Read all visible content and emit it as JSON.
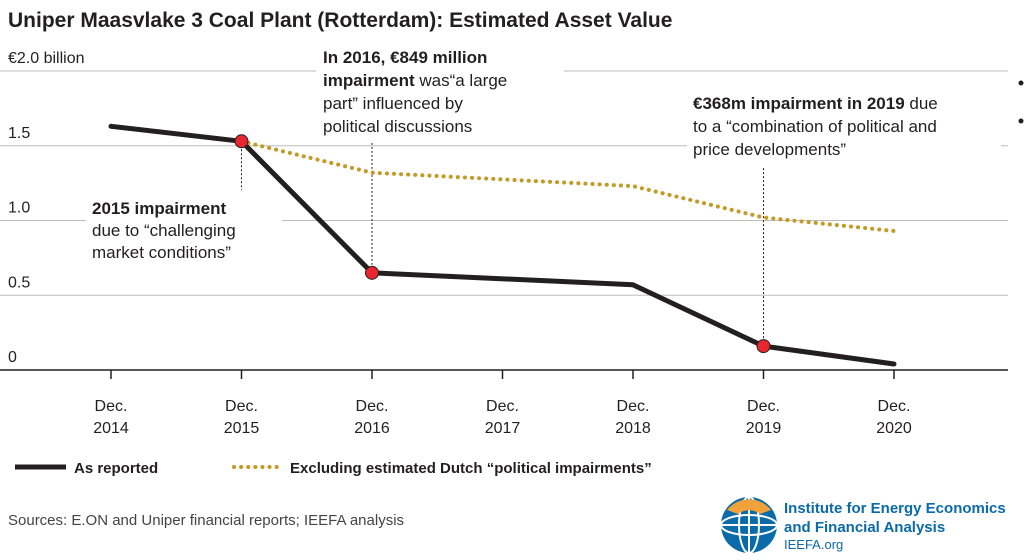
{
  "colors": {
    "reported": "#231f20",
    "excluding": "#c49a27",
    "marker": "#e8262f",
    "grid": "#bdbdbd",
    "logo_blue": "#0b6aa8",
    "logo_orange": "#f0a23b"
  },
  "chart_data": {
    "type": "line",
    "title": "Uniper Maasvlake 3 Coal Plant (Rotterdam):  Estimated Asset Value",
    "categories": [
      "Dec.|2014",
      "Dec.|2015",
      "Dec.|2016",
      "Dec.|2017",
      "Dec.|2018",
      "Dec.|2019",
      "Dec.|2020"
    ],
    "yticks": [
      "0",
      "0.5",
      "1.0",
      "1.5",
      "€2.0 billion"
    ],
    "ylim": [
      0,
      2.0
    ],
    "grid": true,
    "legend_position": "bottom",
    "series": [
      {
        "name": "As reported",
        "style": "solid",
        "points": [
          [
            0,
            1.63
          ],
          [
            1,
            1.53
          ],
          [
            2,
            0.65
          ],
          [
            4,
            0.57
          ],
          [
            5,
            0.16
          ],
          [
            6,
            0.04
          ]
        ]
      },
      {
        "name": "Excluding estimated Dutch “political impairments”",
        "style": "dotted",
        "points": [
          [
            1,
            1.53
          ],
          [
            2,
            1.32
          ],
          [
            4,
            1.23
          ],
          [
            5,
            1.02
          ],
          [
            6,
            0.93
          ]
        ]
      }
    ],
    "markers": [
      [
        1,
        1.53
      ],
      [
        2,
        0.65
      ],
      [
        5,
        0.16
      ]
    ],
    "annotations": [
      {
        "lines": [
          [
            [
              "2015 impairment",
              true
            ]
          ],
          [
            [
              "due to “challenging",
              false
            ]
          ],
          [
            [
              "market conditions”",
              false
            ]
          ]
        ]
      },
      {
        "lines": [
          [
            [
              "In 2016, €849 million",
              true
            ]
          ],
          [
            [
              "impairment",
              true
            ],
            [
              " was“a large",
              false
            ]
          ],
          [
            [
              "part” influenced by",
              false
            ]
          ],
          [
            [
              "political discussions",
              false
            ]
          ]
        ]
      },
      {
        "lines": [
          [
            [
              "€368m impairment in 2019",
              true
            ],
            [
              " due",
              false
            ]
          ],
          [
            [
              "to a “combination of political and",
              false
            ]
          ],
          [
            [
              "price developments”",
              false
            ]
          ]
        ]
      }
    ]
  },
  "source": "Sources: E.ON and Uniper financial reports; IEEFA analysis",
  "logo": {
    "line1": "Institute for Energy Economics",
    "line2": "and Financial Analysis",
    "url": "IEEFA.org"
  }
}
